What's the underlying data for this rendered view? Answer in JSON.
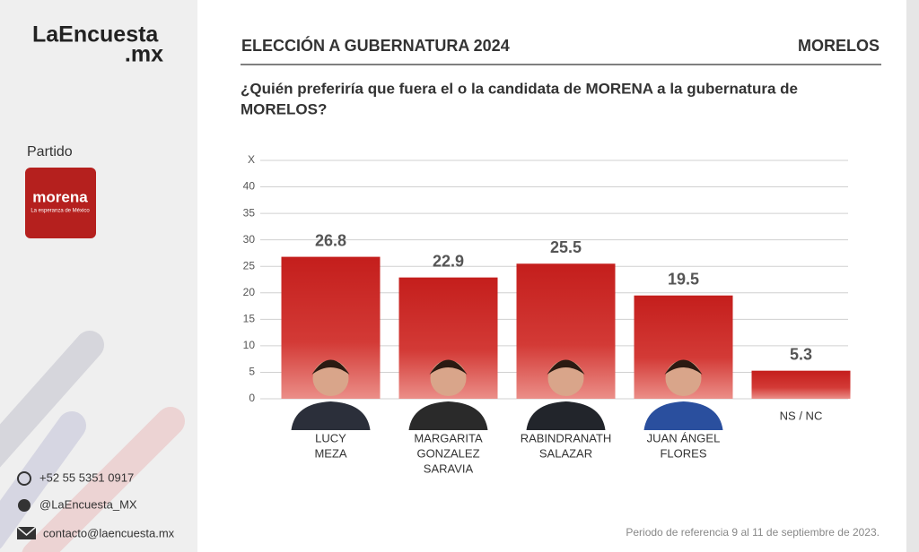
{
  "brand": {
    "name": "LaEncuesta",
    "suffix": ".mx"
  },
  "party": {
    "label": "Partido",
    "logo": "morena",
    "slogan": "La esperanza de México"
  },
  "contacts": [
    "+52 55 5351 0917",
    "@LaEncuesta_MX",
    "contacto@laencuesta.mx"
  ],
  "header": {
    "title": "ELECCIÓN A GUBERNATURA 2024",
    "region": "MORELOS"
  },
  "question": [
    "¿Quién preferiría que fuera el o la candidata de MORENA a la gubernatura de",
    "MORELOS?"
  ],
  "footer": "Periodo de referencia 9 al 11 de septiembre de 2023.",
  "chart_data": {
    "type": "bar",
    "categories": [
      [
        "LUCY",
        "MEZA"
      ],
      [
        "MARGARITA",
        "GONZALEZ",
        "SARAVIA"
      ],
      [
        "RABINDRANATH",
        "SALAZAR"
      ],
      [
        "JUAN ÁNGEL",
        "FLORES"
      ],
      [
        "NS / NC"
      ]
    ],
    "values": [
      26.8,
      22.9,
      25.5,
      19.5,
      5.3
    ],
    "color": "#c62020",
    "ylim": [
      0,
      45
    ],
    "yticks": [
      0,
      5,
      10,
      15,
      20,
      25,
      30,
      35,
      40,
      {
        "value": 45,
        "label": "X"
      }
    ],
    "grid": true
  }
}
